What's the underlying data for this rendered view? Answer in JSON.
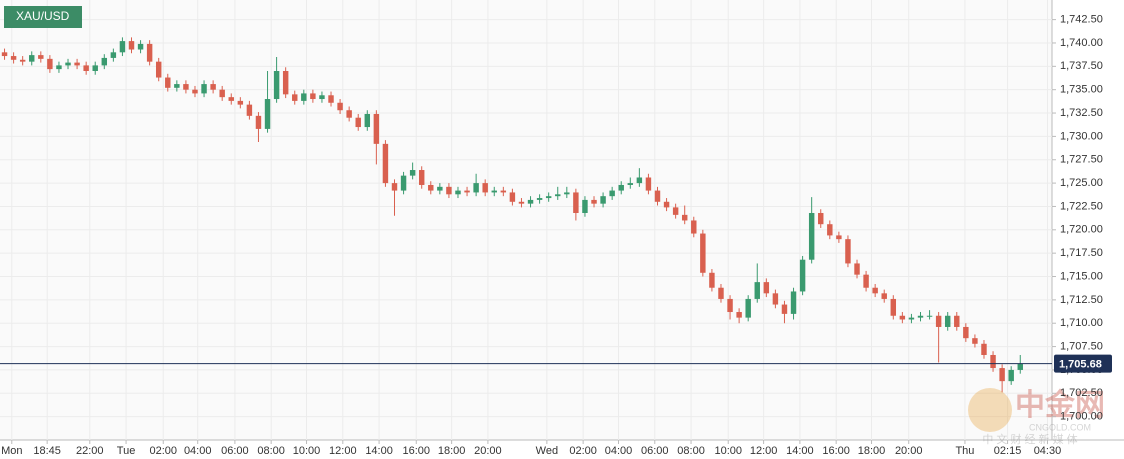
{
  "chart_data": {
    "type": "candlestick",
    "title": "XAU/USD",
    "colors": {
      "up": "#3a9a6f",
      "down": "#d9604f"
    },
    "grid": true,
    "xlim": [
      0,
      116
    ],
    "ylim": [
      1697.5,
      1744.6
    ],
    "xticks": [
      {
        "value": 1.3,
        "label": "Mon"
      },
      {
        "value": 5.2,
        "label": "18:45"
      },
      {
        "value": 9.9,
        "label": "22:00"
      },
      {
        "value": 13.9,
        "label": "Tue"
      },
      {
        "value": 18,
        "label": "02:00"
      },
      {
        "value": 21.8,
        "label": "04:00"
      },
      {
        "value": 25.9,
        "label": "06:00"
      },
      {
        "value": 29.9,
        "label": "08:00"
      },
      {
        "value": 33.8,
        "label": "10:00"
      },
      {
        "value": 37.8,
        "label": "12:00"
      },
      {
        "value": 41.8,
        "label": "14:00"
      },
      {
        "value": 45.9,
        "label": "16:00"
      },
      {
        "value": 49.8,
        "label": "18:00"
      },
      {
        "value": 53.8,
        "label": "20:00"
      },
      {
        "value": 60.3,
        "label": "Wed"
      },
      {
        "value": 64.3,
        "label": "02:00"
      },
      {
        "value": 68.2,
        "label": "04:00"
      },
      {
        "value": 72.2,
        "label": "06:00"
      },
      {
        "value": 76.2,
        "label": "08:00"
      },
      {
        "value": 80.3,
        "label": "10:00"
      },
      {
        "value": 84.2,
        "label": "12:00"
      },
      {
        "value": 88.2,
        "label": "14:00"
      },
      {
        "value": 92.2,
        "label": "16:00"
      },
      {
        "value": 96.1,
        "label": "18:00"
      },
      {
        "value": 100.2,
        "label": "20:00"
      },
      {
        "value": 106.4,
        "label": "Thu"
      },
      {
        "value": 111.1,
        "label": "02:15"
      },
      {
        "value": 115.5,
        "label": "04:30"
      }
    ],
    "yticks": [
      {
        "value": 1700,
        "label": "1,700.00"
      },
      {
        "value": 1702.5,
        "label": "1,702.50"
      },
      {
        "value": 1705,
        "label": "1,705.00"
      },
      {
        "value": 1707.5,
        "label": "1,707.50"
      },
      {
        "value": 1710,
        "label": "1,710.00"
      },
      {
        "value": 1712.5,
        "label": "1,712.50"
      },
      {
        "value": 1715,
        "label": "1,715.00"
      },
      {
        "value": 1717.5,
        "label": "1,717.50"
      },
      {
        "value": 1720,
        "label": "1,720.00"
      },
      {
        "value": 1722.5,
        "label": "1,722.50"
      },
      {
        "value": 1725,
        "label": "1,725.00"
      },
      {
        "value": 1727.5,
        "label": "1,727.50"
      },
      {
        "value": 1730,
        "label": "1,730.00"
      },
      {
        "value": 1732.5,
        "label": "1,732.50"
      },
      {
        "value": 1735,
        "label": "1,735.00"
      },
      {
        "value": 1737.5,
        "label": "1,737.50"
      },
      {
        "value": 1740,
        "label": "1,740.00"
      },
      {
        "value": 1742.5,
        "label": "1,742.50"
      }
    ],
    "last_price": {
      "value": 1705.68,
      "label": "1,705.68"
    },
    "open": [
      1739.0,
      1738.6,
      1738.2,
      1738.0,
      1738.7,
      1738.3,
      1737.2,
      1737.6,
      1737.9,
      1737.6,
      1737.0,
      1737.6,
      1738.4,
      1739.0,
      1740.2,
      1739.3,
      1739.9,
      1738.0,
      1736.3,
      1735.2,
      1735.6,
      1735.0,
      1734.6,
      1735.6,
      1735.0,
      1734.2,
      1733.8,
      1733.4,
      1732.2,
      1730.8,
      1734.0,
      1737.0,
      1734.5,
      1733.8,
      1734.6,
      1734.0,
      1734.4,
      1733.6,
      1732.8,
      1732.0,
      1731.0,
      1732.4,
      1729.2,
      1725.0,
      1724.2,
      1725.8,
      1726.4,
      1724.8,
      1724.2,
      1724.6,
      1723.8,
      1724.2,
      1724.0,
      1725.0,
      1724.0,
      1724.2,
      1724.0,
      1723.0,
      1722.8,
      1723.2,
      1723.4,
      1723.6,
      1723.8,
      1724.0,
      1721.8,
      1723.2,
      1722.8,
      1723.6,
      1724.2,
      1724.8,
      1725.0,
      1725.6,
      1724.2,
      1723.0,
      1722.4,
      1721.6,
      1721.0,
      1719.6,
      1715.4,
      1713.8,
      1712.6,
      1711.2,
      1710.6,
      1712.6,
      1714.4,
      1713.2,
      1712.0,
      1711.0,
      1713.4,
      1716.8,
      1721.8,
      1720.6,
      1719.4,
      1719.0,
      1716.4,
      1715.2,
      1713.8,
      1713.2,
      1712.6,
      1710.8,
      1710.4,
      1710.6,
      1710.8,
      1710.8,
      1709.6,
      1710.8,
      1709.6,
      1708.4,
      1707.8,
      1706.6,
      1705.2,
      1703.8,
      1705.0
    ],
    "high": [
      1739.4,
      1739.0,
      1738.6,
      1739.1,
      1739.1,
      1738.7,
      1738.0,
      1738.3,
      1738.3,
      1738.0,
      1738.0,
      1738.8,
      1739.4,
      1740.6,
      1740.6,
      1740.3,
      1740.3,
      1738.4,
      1736.7,
      1736.0,
      1736.0,
      1735.4,
      1736.0,
      1736.0,
      1735.4,
      1734.6,
      1734.2,
      1733.8,
      1732.6,
      1737.0,
      1738.5,
      1737.4,
      1734.9,
      1735.0,
      1735.0,
      1734.8,
      1734.8,
      1734.0,
      1733.2,
      1732.4,
      1732.8,
      1732.8,
      1729.6,
      1725.4,
      1726.2,
      1727.2,
      1726.8,
      1725.2,
      1725.0,
      1725.0,
      1724.6,
      1724.6,
      1726.0,
      1725.4,
      1724.6,
      1724.6,
      1724.4,
      1723.4,
      1723.6,
      1723.8,
      1724.0,
      1724.6,
      1724.6,
      1724.4,
      1723.6,
      1723.6,
      1724.0,
      1724.6,
      1725.2,
      1725.6,
      1726.6,
      1726.0,
      1724.6,
      1723.4,
      1722.8,
      1722.6,
      1721.4,
      1720.0,
      1715.8,
      1714.2,
      1713.0,
      1711.6,
      1713.0,
      1716.4,
      1714.8,
      1713.6,
      1712.4,
      1713.8,
      1717.2,
      1723.5,
      1722.2,
      1721.0,
      1719.8,
      1719.4,
      1716.8,
      1715.6,
      1714.2,
      1713.6,
      1713.0,
      1711.2,
      1711.0,
      1711.2,
      1711.4,
      1711.2,
      1711.2,
      1711.2,
      1710.0,
      1708.8,
      1708.2,
      1707.0,
      1705.6,
      1705.4,
      1706.6
    ],
    "low": [
      1738.2,
      1737.8,
      1737.6,
      1737.6,
      1737.9,
      1736.8,
      1736.8,
      1737.2,
      1737.2,
      1736.6,
      1736.6,
      1737.2,
      1738.0,
      1738.6,
      1738.9,
      1738.9,
      1737.6,
      1735.9,
      1734.8,
      1734.8,
      1734.6,
      1734.2,
      1734.2,
      1734.6,
      1733.8,
      1733.4,
      1733.0,
      1731.8,
      1729.4,
      1730.4,
      1733.6,
      1734.1,
      1733.4,
      1733.4,
      1733.6,
      1733.6,
      1733.2,
      1732.4,
      1731.6,
      1730.6,
      1730.6,
      1727.0,
      1724.6,
      1721.5,
      1723.8,
      1725.4,
      1724.4,
      1723.8,
      1723.8,
      1723.4,
      1723.4,
      1723.6,
      1723.6,
      1723.6,
      1723.6,
      1723.6,
      1722.6,
      1722.4,
      1722.4,
      1722.8,
      1723.0,
      1723.2,
      1723.4,
      1721.0,
      1721.4,
      1722.4,
      1722.4,
      1723.2,
      1723.8,
      1724.4,
      1724.6,
      1723.8,
      1722.6,
      1722.0,
      1721.2,
      1720.6,
      1719.2,
      1715.0,
      1713.4,
      1712.2,
      1710.4,
      1710.0,
      1710.2,
      1712.2,
      1712.8,
      1711.6,
      1710.0,
      1710.4,
      1713.0,
      1716.4,
      1720.2,
      1719.0,
      1718.6,
      1716.0,
      1714.8,
      1713.4,
      1712.8,
      1712.2,
      1710.4,
      1710.0,
      1710.0,
      1710.2,
      1710.4,
      1705.8,
      1709.2,
      1709.2,
      1708.0,
      1707.4,
      1706.2,
      1704.8,
      1702.6,
      1703.4,
      1704.6
    ],
    "close": [
      1738.6,
      1738.2,
      1738.0,
      1738.7,
      1738.3,
      1737.2,
      1737.6,
      1737.9,
      1737.6,
      1737.0,
      1737.6,
      1738.4,
      1739.0,
      1740.2,
      1739.3,
      1739.9,
      1738.0,
      1736.3,
      1735.2,
      1735.6,
      1735.0,
      1734.6,
      1735.6,
      1735.0,
      1734.2,
      1733.8,
      1733.4,
      1732.2,
      1730.8,
      1734.0,
      1737.0,
      1734.5,
      1733.8,
      1734.6,
      1734.0,
      1734.4,
      1733.6,
      1732.8,
      1732.0,
      1731.0,
      1732.4,
      1729.2,
      1725.0,
      1724.2,
      1725.8,
      1726.4,
      1724.8,
      1724.2,
      1724.6,
      1723.8,
      1724.2,
      1724.0,
      1725.0,
      1724.0,
      1724.2,
      1724.0,
      1723.0,
      1722.8,
      1723.2,
      1723.4,
      1723.6,
      1723.8,
      1724.0,
      1721.8,
      1723.2,
      1722.8,
      1723.6,
      1724.2,
      1724.8,
      1725.0,
      1725.6,
      1724.2,
      1723.0,
      1722.4,
      1721.6,
      1721.0,
      1719.6,
      1715.4,
      1713.8,
      1712.6,
      1711.2,
      1710.6,
      1712.6,
      1714.4,
      1713.2,
      1712.0,
      1711.0,
      1713.4,
      1716.8,
      1721.8,
      1720.6,
      1719.4,
      1719.0,
      1716.4,
      1715.2,
      1713.8,
      1713.2,
      1712.6,
      1710.8,
      1710.4,
      1710.6,
      1710.8,
      1710.8,
      1709.6,
      1710.8,
      1709.6,
      1708.4,
      1707.8,
      1706.6,
      1705.2,
      1703.8,
      1705.0,
      1705.68
    ]
  },
  "watermark": {
    "title": "中金网",
    "url": "CNGOLD.COM",
    "tagline": "中 文 财 经 新 媒 体"
  }
}
